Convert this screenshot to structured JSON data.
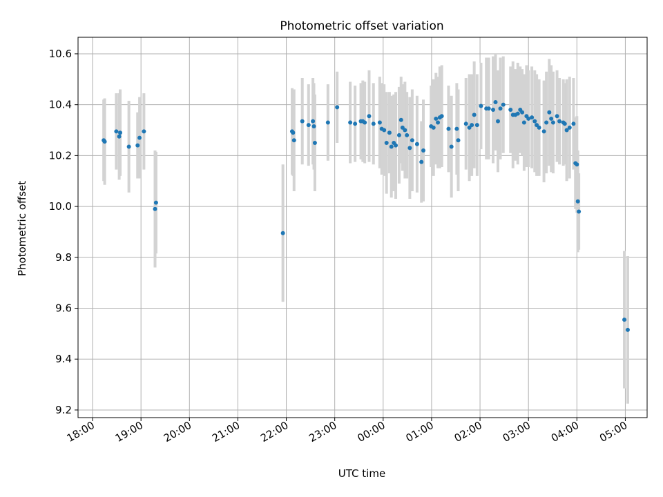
{
  "chart_data": {
    "type": "scatter",
    "title": "Photometric offset variation",
    "xlabel": "UTC time",
    "ylabel": "Photometric offset",
    "x_unit": "hours since 18:00 UTC",
    "x_range": [
      -0.3,
      11.45
    ],
    "ylim": [
      9.17,
      10.665
    ],
    "grid": true,
    "x_ticks": [
      {
        "value": 0,
        "label": "18:00"
      },
      {
        "value": 1,
        "label": "19:00"
      },
      {
        "value": 2,
        "label": "20:00"
      },
      {
        "value": 3,
        "label": "21:00"
      },
      {
        "value": 4,
        "label": "22:00"
      },
      {
        "value": 5,
        "label": "23:00"
      },
      {
        "value": 6,
        "label": "00:00"
      },
      {
        "value": 7,
        "label": "01:00"
      },
      {
        "value": 8,
        "label": "02:00"
      },
      {
        "value": 9,
        "label": "03:00"
      },
      {
        "value": 10,
        "label": "04:00"
      },
      {
        "value": 11,
        "label": "05:00"
      }
    ],
    "y_ticks": [
      {
        "value": 9.2,
        "label": "9.2"
      },
      {
        "value": 9.4,
        "label": "9.4"
      },
      {
        "value": 9.6,
        "label": "9.6"
      },
      {
        "value": 9.8,
        "label": "9.8"
      },
      {
        "value": 10.0,
        "label": "10.0"
      },
      {
        "value": 10.2,
        "label": "10.2"
      },
      {
        "value": 10.4,
        "label": "10.4"
      },
      {
        "value": 10.6,
        "label": "10.6"
      }
    ],
    "colors": {
      "point": "#1f77b4",
      "errorbar": "#d3d3d3",
      "grid": "#b0b0b0"
    },
    "series": [
      {
        "x": [
          0.23,
          0.25,
          0.49,
          0.55,
          0.57,
          0.75,
          0.93,
          0.97,
          1.06,
          1.29,
          1.31,
          3.93,
          4.12,
          4.14,
          4.16,
          4.33,
          4.46,
          4.55,
          4.57,
          4.59,
          4.86,
          5.05,
          5.32,
          5.42,
          5.54,
          5.58,
          5.62,
          5.71,
          5.8,
          5.93,
          5.97,
          6.02,
          6.07,
          6.13,
          6.17,
          6.22,
          6.26,
          6.33,
          6.37,
          6.4,
          6.45,
          6.49,
          6.55,
          6.6,
          6.7,
          6.79,
          6.83,
          6.99,
          7.04,
          7.09,
          7.13,
          7.17,
          7.21,
          7.35,
          7.41,
          7.52,
          7.55,
          7.71,
          7.78,
          7.83,
          7.88,
          7.94,
          8.02,
          8.13,
          8.18,
          8.27,
          8.32,
          8.37,
          8.42,
          8.48,
          8.63,
          8.68,
          8.73,
          8.78,
          8.83,
          8.87,
          8.91,
          8.96,
          9.0,
          9.07,
          9.13,
          9.17,
          9.22,
          9.32,
          9.37,
          9.43,
          9.47,
          9.51,
          9.59,
          9.64,
          9.72,
          9.75,
          9.79,
          9.85,
          9.93,
          9.97,
          10.0,
          10.02,
          10.04,
          10.98,
          11.05
        ],
        "y": [
          10.26,
          10.255,
          10.295,
          10.275,
          10.29,
          10.235,
          10.24,
          10.27,
          10.295,
          9.99,
          10.015,
          9.895,
          10.295,
          10.29,
          10.26,
          10.335,
          10.32,
          10.335,
          10.315,
          10.25,
          10.33,
          10.39,
          10.33,
          10.325,
          10.335,
          10.335,
          10.33,
          10.355,
          10.325,
          10.33,
          10.305,
          10.3,
          10.25,
          10.29,
          10.235,
          10.25,
          10.24,
          10.28,
          10.34,
          10.31,
          10.3,
          10.28,
          10.23,
          10.26,
          10.245,
          10.175,
          10.22,
          10.315,
          10.31,
          10.345,
          10.33,
          10.35,
          10.355,
          10.305,
          10.235,
          10.305,
          10.26,
          10.325,
          10.31,
          10.32,
          10.36,
          10.32,
          10.395,
          10.385,
          10.385,
          10.38,
          10.41,
          10.335,
          10.385,
          10.4,
          10.38,
          10.36,
          10.36,
          10.365,
          10.38,
          10.37,
          10.33,
          10.355,
          10.345,
          10.35,
          10.335,
          10.32,
          10.31,
          10.295,
          10.33,
          10.37,
          10.345,
          10.33,
          10.355,
          10.335,
          10.33,
          10.325,
          10.3,
          10.31,
          10.325,
          10.17,
          10.165,
          10.02,
          9.98,
          9.555,
          9.515
        ],
        "err": [
          0.16,
          0.17,
          0.15,
          0.17,
          0.17,
          0.18,
          0.13,
          0.16,
          0.15,
          0.23,
          0.2,
          0.27,
          0.17,
          0.17,
          0.2,
          0.17,
          0.16,
          0.17,
          0.17,
          0.19,
          0.15,
          0.14,
          0.16,
          0.15,
          0.15,
          0.16,
          0.16,
          0.18,
          0.16,
          0.18,
          0.18,
          0.18,
          0.2,
          0.16,
          0.2,
          0.19,
          0.21,
          0.19,
          0.17,
          0.17,
          0.19,
          0.17,
          0.2,
          0.2,
          0.19,
          0.16,
          0.2,
          0.16,
          0.19,
          0.18,
          0.18,
          0.2,
          0.2,
          0.17,
          0.2,
          0.18,
          0.2,
          0.18,
          0.21,
          0.2,
          0.21,
          0.2,
          0.17,
          0.2,
          0.2,
          0.21,
          0.19,
          0.2,
          0.2,
          0.19,
          0.17,
          0.21,
          0.18,
          0.2,
          0.17,
          0.17,
          0.19,
          0.2,
          0.19,
          0.2,
          0.2,
          0.2,
          0.19,
          0.2,
          0.2,
          0.21,
          0.21,
          0.2,
          0.18,
          0.17,
          0.17,
          0.16,
          0.2,
          0.2,
          0.18,
          0.18,
          0.19,
          0.2,
          0.15,
          0.27,
          0.29
        ]
      }
    ]
  }
}
